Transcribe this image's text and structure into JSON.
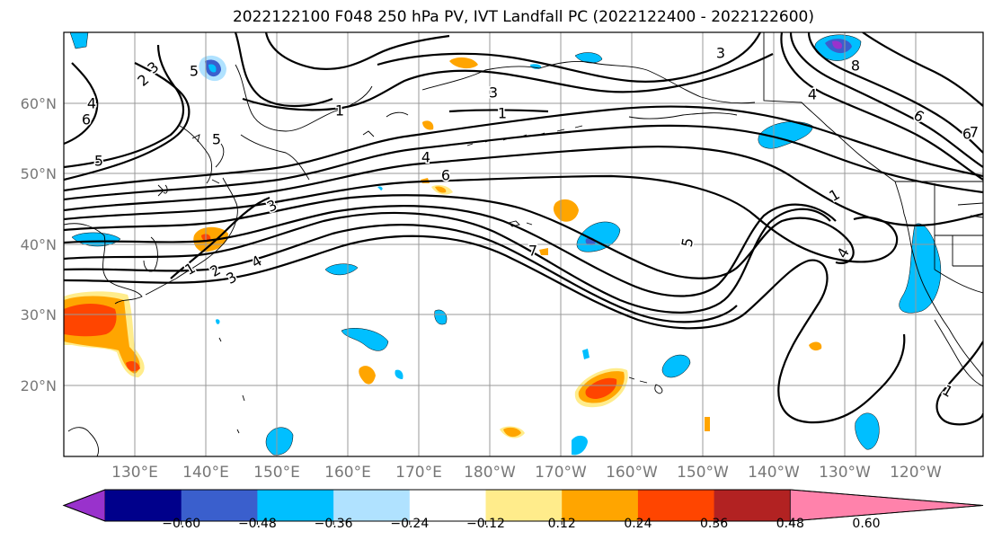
{
  "title": "2022122100 F048 250 hPa PV, IVT Landfall PC (2022122400 - 2022122600)",
  "lat_labels": [
    "60°N",
    "50°N",
    "40°N",
    "30°N",
    "20°N"
  ],
  "lon_labels": [
    "130°E",
    "140°E",
    "150°E",
    "160°E",
    "170°E",
    "180°W",
    "170°W",
    "160°W",
    "150°W",
    "140°W",
    "130°W",
    "120°W"
  ],
  "colorbar": {
    "colors": [
      "#9932cc",
      "#00008b",
      "#3a5fcd",
      "#00bfff",
      "#b0e2ff",
      "#ffffff",
      "#ffec8b",
      "#ffa500",
      "#ff4500",
      "#b22222",
      "#ff82ab"
    ],
    "tick_labels": [
      "−0.60",
      "−0.48",
      "−0.36",
      "−0.24",
      "−0.12",
      "0.12",
      "0.24",
      "0.36",
      "0.48",
      "0.60"
    ]
  },
  "contour_labels": [
    "1",
    "3",
    "1",
    "3",
    "4",
    "6",
    "7",
    "5",
    "4",
    "1",
    "2",
    "4",
    "5",
    "6",
    "8",
    "3",
    "5",
    "2",
    "4",
    "6",
    "5",
    "6",
    "4",
    "3",
    "1",
    "3",
    "7",
    "1"
  ]
}
